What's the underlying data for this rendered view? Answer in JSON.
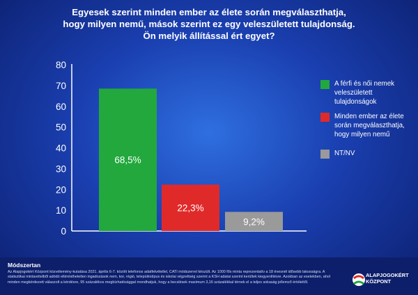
{
  "title_lines": [
    "Egyesek szerint minden ember az élete során megválaszthatja,",
    "hogy milyen nemű, mások szerint ez egy veleszületett tulajdonság.",
    "Ön melyik állítással ért egyet?"
  ],
  "chart_data": {
    "type": "bar",
    "categories": [
      "A férfi és női nemek veleszületett tulajdonságok",
      "Minden ember az élete során megválaszthatja, hogy milyen nemű",
      "NT/NV"
    ],
    "values": [
      68.5,
      22.3,
      9.2
    ],
    "data_labels": [
      "68,5%",
      "22,3%",
      "9,2%"
    ],
    "colors": [
      "#22a83d",
      "#e02a2a",
      "#9a9a9a"
    ],
    "ylim": [
      0,
      80
    ],
    "yticks": [
      0,
      10,
      20,
      30,
      40,
      50,
      60,
      70,
      80
    ],
    "grid": false,
    "legend_position": "right",
    "legend": [
      {
        "label": "A férfi és női nemek veleszületett tulajdonságok",
        "color": "#22a83d"
      },
      {
        "label": "Minden ember az élete során megválaszthatja, hogy milyen nemű",
        "color": "#e02a2a"
      },
      {
        "label": "NT/NV",
        "color": "#9a9a9a"
      }
    ]
  },
  "methodology": {
    "title": "Módszertan",
    "text": "Az Alapjogokért Központ közvélemény-kutatása 2021. április 6-7. között telefonos adatfelvétellel, CATI módszerrel készült. Az 1000 fős minta reprezentatív a 18 évesnél idősebb lakosságra. A statisztikai mintavételből adódó eltérésthetetlen ingadozások nem, kor, régió, településtípus és iskolai végzettség szerint a KSH adatai szerint kerültek kiegyenlítésre. Azokban az esetekben, ahol minden megkérdezett válaszolt a kérdésre, 95 százalékos megbízhatósággal mondhatjuk, hogy a becslések maximum 3,16 százalékkal térnek el a teljes sokaság jellemző értékétől."
  },
  "logo": {
    "line1": "ALAPJOGOKÉRT",
    "line2": "KÖZPONT"
  }
}
